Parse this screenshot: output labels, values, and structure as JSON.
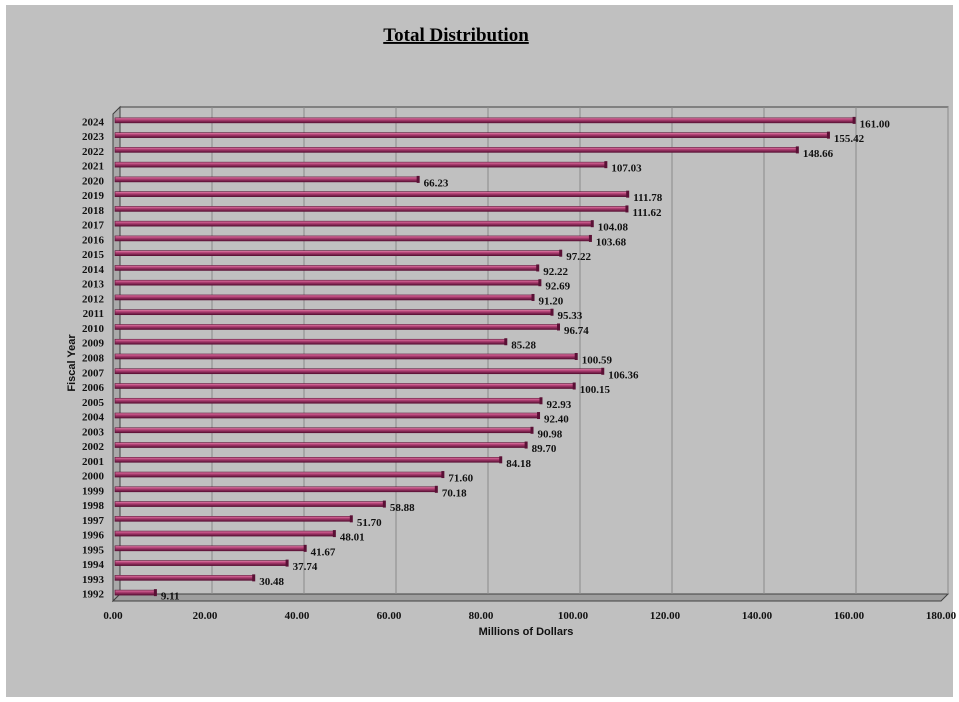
{
  "chart_data": {
    "type": "bar",
    "orientation": "horizontal",
    "title": "Total Distribution",
    "xlabel": "Millions of Dollars",
    "ylabel": "Fiscal Year",
    "xlim": [
      0,
      180
    ],
    "x_ticks": [
      "0.00",
      "20.00",
      "40.00",
      "60.00",
      "80.00",
      "100.00",
      "120.00",
      "140.00",
      "160.00",
      "180.00"
    ],
    "grid": true,
    "categories": [
      "1992",
      "1993",
      "1994",
      "1995",
      "1996",
      "1997",
      "1998",
      "1999",
      "2000",
      "2001",
      "2002",
      "2003",
      "2004",
      "2005",
      "2006",
      "2007",
      "2008",
      "2009",
      "2010",
      "2011",
      "2012",
      "2013",
      "2014",
      "2015",
      "2016",
      "2017",
      "2018",
      "2019",
      "2020",
      "2021",
      "2022",
      "2023",
      "2024"
    ],
    "values": [
      9.11,
      30.48,
      37.74,
      41.67,
      48.01,
      51.7,
      58.88,
      70.18,
      71.6,
      84.18,
      89.7,
      90.98,
      92.4,
      92.93,
      100.15,
      106.36,
      100.59,
      85.28,
      96.74,
      95.33,
      91.2,
      92.69,
      92.22,
      97.22,
      103.68,
      104.08,
      111.62,
      111.78,
      66.23,
      107.03,
      148.66,
      155.42,
      161.0
    ],
    "value_labels": [
      "9.11",
      "30.48",
      "37.74",
      "41.67",
      "48.01",
      "51.70",
      "58.88",
      "70.18",
      "71.60",
      "84.18",
      "89.70",
      "90.98",
      "92.40",
      "92.93",
      "100.15",
      "106.36",
      "100.59",
      "85.28",
      "96.74",
      "95.33",
      "91.20",
      "92.69",
      "92.22",
      "97.22",
      "103.68",
      "104.08",
      "111.62",
      "111.78",
      "66.23",
      "107.03",
      "148.66",
      "155.42",
      "161.00"
    ],
    "colors": {
      "background": "#c0c0c0",
      "plot_area": "#c0c0c0",
      "bar": "#a8386a",
      "bar_dark": "#5a1035",
      "bar_light": "#e07aa5",
      "grid": "#8a8a8a",
      "axis": "#404040"
    }
  }
}
